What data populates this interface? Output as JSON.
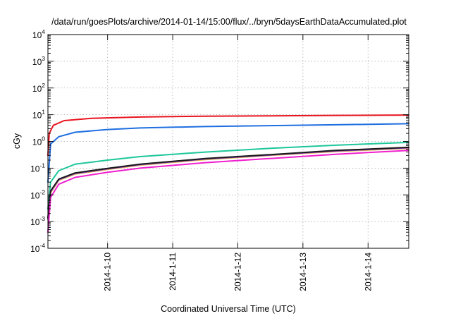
{
  "chart_data": {
    "type": "line",
    "title": "/data/run/goesPlots/archive/2014-01-14/15:00/flux/../bryn/5daysEarthDataAccumulated.plot",
    "xlabel": "Coordinated Universal Time (UTC)",
    "ylabel": "cGy",
    "x_scale": "time",
    "y_scale": "log",
    "xlim": [
      "2014-01-09T02:00",
      "2014-01-14T15:00"
    ],
    "ylim": [
      0.0001,
      10000
    ],
    "x_ticks": [
      "2014-1-10",
      "2014-1-11",
      "2014-1-12",
      "2014-1-13",
      "2014-1-14"
    ],
    "y_ticks": [
      {
        "value": 0.0001,
        "base": "10",
        "exp": "-4"
      },
      {
        "value": 0.001,
        "base": "10",
        "exp": "-3"
      },
      {
        "value": 0.01,
        "base": "10",
        "exp": "-2"
      },
      {
        "value": 0.1,
        "base": "10",
        "exp": "-1"
      },
      {
        "value": 1,
        "base": "10",
        "exp": "0"
      },
      {
        "value": 10,
        "base": "10",
        "exp": "1"
      },
      {
        "value": 100,
        "base": "10",
        "exp": "2"
      },
      {
        "value": 1000,
        "base": "10",
        "exp": "3"
      },
      {
        "value": 10000,
        "base": "10",
        "exp": "4"
      }
    ],
    "grid": true,
    "legend": "none",
    "series": [
      {
        "color": "#e8141e",
        "x": [
          "2014-01-09T02:00",
          "2014-01-09T02:30",
          "2014-01-09T04:00",
          "2014-01-09T08:00",
          "2014-01-09T18:00",
          "2014-01-10T12:00",
          "2014-01-11T12:00",
          "2014-01-12T12:00",
          "2014-01-13T12:00",
          "2014-01-14T15:00"
        ],
        "values": [
          0.3,
          2.0,
          4.0,
          6.0,
          7.3,
          8.2,
          8.8,
          9.1,
          9.4,
          9.7
        ]
      },
      {
        "color": "#1f6fe0",
        "x": [
          "2014-01-09T02:00",
          "2014-01-09T03:00",
          "2014-01-09T06:00",
          "2014-01-09T12:00",
          "2014-01-10T00:00",
          "2014-01-10T12:00",
          "2014-01-11T12:00",
          "2014-01-12T12:00",
          "2014-01-13T12:00",
          "2014-01-14T15:00"
        ],
        "values": [
          0.03,
          0.8,
          1.5,
          2.2,
          2.8,
          3.2,
          3.6,
          3.9,
          4.2,
          4.6
        ]
      },
      {
        "color": "#1dc79a",
        "x": [
          "2014-01-09T02:00",
          "2014-01-09T03:00",
          "2014-01-09T06:00",
          "2014-01-09T12:00",
          "2014-01-10T00:00",
          "2014-01-10T12:00",
          "2014-01-11T12:00",
          "2014-01-12T12:00",
          "2014-01-13T12:00",
          "2014-01-14T15:00"
        ],
        "values": [
          0.003,
          0.03,
          0.08,
          0.14,
          0.2,
          0.27,
          0.4,
          0.55,
          0.72,
          0.92
        ]
      },
      {
        "color": "#e6c13a",
        "x": [
          "2014-01-09T02:00",
          "2014-01-09T03:00",
          "2014-01-09T06:00",
          "2014-01-09T12:00",
          "2014-01-10T00:00",
          "2014-01-10T12:00",
          "2014-01-11T12:00",
          "2014-01-12T12:00",
          "2014-01-13T12:00",
          "2014-01-14T15:00"
        ],
        "values": [
          0.0012,
          0.012,
          0.035,
          0.06,
          0.09,
          0.13,
          0.21,
          0.3,
          0.42,
          0.55
        ]
      },
      {
        "color": "#8f3ad8",
        "x": [
          "2014-01-09T02:00",
          "2014-01-09T03:00",
          "2014-01-09T06:00",
          "2014-01-09T12:00",
          "2014-01-10T00:00",
          "2014-01-10T12:00",
          "2014-01-11T12:00",
          "2014-01-12T12:00",
          "2014-01-13T12:00",
          "2014-01-14T15:00"
        ],
        "values": [
          0.0013,
          0.013,
          0.037,
          0.063,
          0.094,
          0.135,
          0.22,
          0.31,
          0.44,
          0.58
        ]
      },
      {
        "color": "#1a1a1a",
        "x": [
          "2014-01-09T02:00",
          "2014-01-09T03:00",
          "2014-01-09T06:00",
          "2014-01-09T12:00",
          "2014-01-10T00:00",
          "2014-01-10T12:00",
          "2014-01-11T12:00",
          "2014-01-12T12:00",
          "2014-01-13T12:00",
          "2014-01-14T15:00"
        ],
        "values": [
          0.0014,
          0.014,
          0.039,
          0.066,
          0.098,
          0.14,
          0.23,
          0.32,
          0.46,
          0.6
        ]
      },
      {
        "color": "#f01fcf",
        "x": [
          "2014-01-09T02:00",
          "2014-01-09T03:00",
          "2014-01-09T06:00",
          "2014-01-09T12:00",
          "2014-01-10T00:00",
          "2014-01-10T12:00",
          "2014-01-11T12:00",
          "2014-01-12T12:00",
          "2014-01-13T12:00",
          "2014-01-14T15:00"
        ],
        "values": [
          0.0004,
          0.008,
          0.025,
          0.045,
          0.07,
          0.1,
          0.16,
          0.23,
          0.33,
          0.46
        ]
      }
    ]
  }
}
